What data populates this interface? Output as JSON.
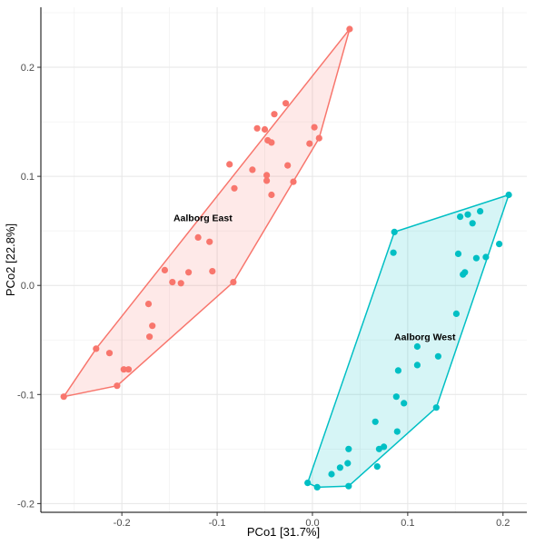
{
  "chart_data": {
    "type": "scatter",
    "title": "",
    "xlabel": "PCo1 [31.7%]",
    "ylabel": "PCo2 [22.8%]",
    "xlim": [
      -0.285,
      0.225
    ],
    "ylim": [
      -0.208,
      0.255
    ],
    "x_ticks": [
      -0.2,
      -0.1,
      0.0,
      0.1,
      0.2
    ],
    "x_tick_labels": [
      "-0.2",
      "-0.1",
      "0.0",
      "0.1",
      "0.2"
    ],
    "y_ticks": [
      -0.2,
      -0.1,
      0.0,
      0.1,
      0.2
    ],
    "y_tick_labels": [
      "-0.2",
      "-0.1",
      "0.0",
      "0.1",
      "0.2"
    ],
    "grid": true,
    "series": [
      {
        "name": "Aalborg East",
        "color": "#F8766D",
        "label": "Aalborg East",
        "label_pos": [
          -0.115,
          0.059
        ],
        "points": [
          [
            0.039,
            0.235
          ],
          [
            -0.028,
            0.167
          ],
          [
            -0.04,
            0.157
          ],
          [
            -0.047,
            0.133
          ],
          [
            -0.043,
            0.131
          ],
          [
            -0.05,
            0.143
          ],
          [
            -0.058,
            0.144
          ],
          [
            0.002,
            0.145
          ],
          [
            -0.003,
            0.13
          ],
          [
            0.007,
            0.135
          ],
          [
            -0.063,
            0.106
          ],
          [
            -0.087,
            0.111
          ],
          [
            -0.048,
            0.101
          ],
          [
            -0.026,
            0.11
          ],
          [
            -0.048,
            0.096
          ],
          [
            -0.043,
            0.083
          ],
          [
            -0.02,
            0.095
          ],
          [
            -0.082,
            0.089
          ],
          [
            -0.12,
            0.044
          ],
          [
            -0.108,
            0.04
          ],
          [
            -0.155,
            0.014
          ],
          [
            -0.13,
            0.012
          ],
          [
            -0.105,
            0.013
          ],
          [
            -0.138,
            0.002
          ],
          [
            -0.147,
            0.003
          ],
          [
            -0.083,
            0.003
          ],
          [
            -0.172,
            -0.017
          ],
          [
            -0.168,
            -0.037
          ],
          [
            -0.171,
            -0.047
          ],
          [
            -0.227,
            -0.058
          ],
          [
            -0.213,
            -0.062
          ],
          [
            -0.198,
            -0.077
          ],
          [
            -0.193,
            -0.077
          ],
          [
            -0.205,
            -0.092
          ],
          [
            -0.261,
            -0.102
          ]
        ],
        "hull": [
          [
            -0.261,
            -0.102
          ],
          [
            -0.227,
            -0.058
          ],
          [
            0.039,
            0.235
          ],
          [
            0.007,
            0.135
          ],
          [
            -0.083,
            0.003
          ],
          [
            -0.205,
            -0.092
          ]
        ]
      },
      {
        "name": "Aalborg West",
        "color": "#00BFC4",
        "label": "Aalborg West",
        "label_pos": [
          0.118,
          -0.05
        ],
        "points": [
          [
            0.206,
            0.083
          ],
          [
            0.176,
            0.068
          ],
          [
            0.155,
            0.063
          ],
          [
            0.163,
            0.065
          ],
          [
            0.168,
            0.057
          ],
          [
            0.086,
            0.049
          ],
          [
            0.196,
            0.038
          ],
          [
            0.085,
            0.03
          ],
          [
            0.153,
            0.029
          ],
          [
            0.182,
            0.026
          ],
          [
            0.172,
            0.025
          ],
          [
            0.16,
            0.012
          ],
          [
            0.158,
            0.01
          ],
          [
            0.151,
            -0.026
          ],
          [
            0.11,
            -0.056
          ],
          [
            0.132,
            -0.065
          ],
          [
            0.11,
            -0.073
          ],
          [
            0.09,
            -0.078
          ],
          [
            0.088,
            -0.102
          ],
          [
            0.096,
            -0.108
          ],
          [
            0.13,
            -0.112
          ],
          [
            0.066,
            -0.125
          ],
          [
            0.089,
            -0.134
          ],
          [
            0.075,
            -0.148
          ],
          [
            0.07,
            -0.15
          ],
          [
            0.038,
            -0.15
          ],
          [
            0.037,
            -0.163
          ],
          [
            0.068,
            -0.166
          ],
          [
            0.029,
            -0.167
          ],
          [
            0.02,
            -0.173
          ],
          [
            -0.005,
            -0.181
          ],
          [
            0.005,
            -0.185
          ],
          [
            0.038,
            -0.184
          ]
        ],
        "hull": [
          [
            -0.005,
            -0.181
          ],
          [
            0.086,
            0.049
          ],
          [
            0.206,
            0.083
          ],
          [
            0.13,
            -0.112
          ],
          [
            0.038,
            -0.184
          ],
          [
            0.005,
            -0.185
          ]
        ]
      }
    ]
  }
}
